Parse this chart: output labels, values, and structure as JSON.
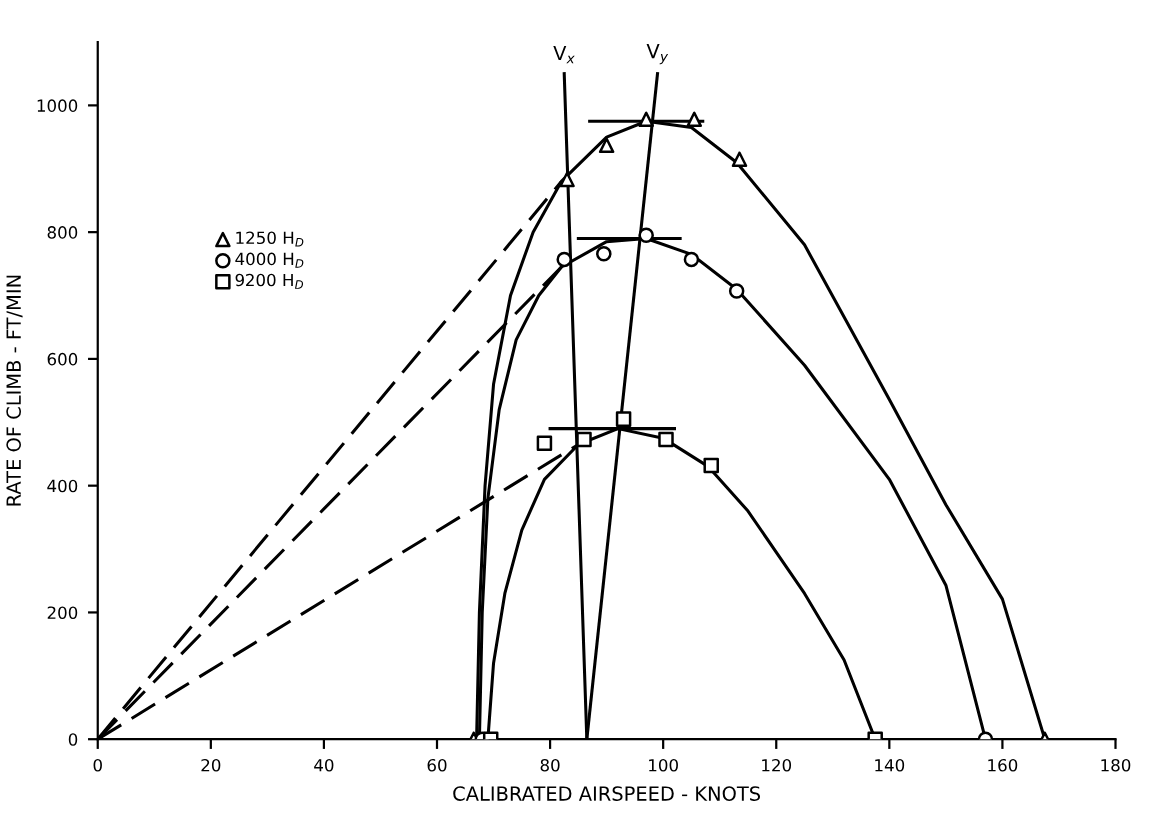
{
  "chart_data": {
    "type": "line",
    "xlabel": "CALIBRATED AIRSPEED - KNOTS",
    "ylabel": "RATE OF CLIMB - FT/MIN",
    "xlim": [
      0,
      180
    ],
    "ylim": [
      0,
      1100
    ],
    "xticks": [
      0,
      20,
      40,
      60,
      80,
      100,
      120,
      140,
      160,
      180
    ],
    "yticks": [
      0,
      200,
      400,
      600,
      800,
      1000
    ],
    "grid": false,
    "legend": "top left",
    "series": [
      {
        "name": "1250 H$_{D}$",
        "type": "scatter",
        "marker": "triangle",
        "color": "#000000",
        "x": [
          66.5,
          83,
          90,
          97,
          105.5,
          113.5,
          167.5
        ],
        "values": [
          0,
          883,
          937,
          978,
          978,
          915,
          0
        ]
      },
      {
        "name": "4000 H$_{D}$",
        "type": "scatter",
        "marker": "circle",
        "color": "#000000",
        "x": [
          68,
          82.5,
          89.5,
          97,
          105,
          113,
          157
        ],
        "values": [
          0,
          757,
          766,
          795,
          757,
          707,
          0
        ]
      },
      {
        "name": "9200 H$_{D}$",
        "type": "scatter",
        "marker": "square",
        "color": "#000000",
        "x": [
          69.5,
          79,
          86,
          93,
          100.5,
          108.5,
          137.5
        ],
        "values": [
          0,
          467,
          473,
          505,
          473,
          432,
          0
        ]
      },
      {
        "line_style": "solid",
        "color": "#000000",
        "x": [
          67,
          67.5,
          68.5,
          70,
          73,
          77,
          82,
          90,
          97,
          105,
          113,
          125,
          140,
          150,
          160,
          167.5
        ],
        "values": [
          0,
          200,
          400,
          560,
          700,
          800,
          880,
          950,
          975,
          965,
          910,
          780,
          536,
          370,
          221,
          0
        ]
      },
      {
        "line_style": "solid",
        "color": "#000000",
        "x": [
          67.5,
          68,
          69,
          71,
          74,
          78,
          82,
          90,
          97,
          105,
          113,
          125,
          140,
          150,
          157
        ],
        "values": [
          0,
          200,
          380,
          520,
          630,
          700,
          745,
          785,
          790,
          765,
          710,
          590,
          410,
          243,
          0
        ]
      },
      {
        "line_style": "solid",
        "color": "#000000",
        "x": [
          69,
          70,
          72,
          75,
          79,
          85,
          92,
          100,
          108,
          115,
          125,
          132,
          137.5
        ],
        "values": [
          0,
          120,
          230,
          330,
          410,
          465,
          490,
          475,
          430,
          360,
          230,
          125,
          0
        ]
      },
      {
        "line_style": "dashed",
        "color": "#000000",
        "x": [
          0,
          82
        ],
        "values": [
          0,
          880
        ]
      },
      {
        "line_style": "dashed",
        "color": "#000000",
        "x": [
          0,
          82
        ],
        "values": [
          0,
          745
        ]
      },
      {
        "line_style": "dashed",
        "color": "#000000",
        "x": [
          0,
          85
        ],
        "values": [
          0,
          465
        ]
      },
      {
        "line_style": "solid",
        "color": "#000000",
        "x": [
          87,
          107
        ],
        "values": [
          975,
          975
        ]
      },
      {
        "line_style": "solid",
        "color": "#000000",
        "x": [
          85,
          103
        ],
        "values": [
          790,
          790
        ]
      },
      {
        "line_style": "solid",
        "color": "#000000",
        "x": [
          80,
          102
        ],
        "values": [
          490,
          490
        ]
      },
      {
        "name": "V$_{x}$",
        "line_style": "solid",
        "color": "#000000",
        "x": [
          86.5,
          82.5
        ],
        "values": [
          0,
          1050
        ]
      },
      {
        "name": "V$_{y}$",
        "line_style": "solid",
        "color": "#000000",
        "x": [
          86.5,
          99
        ],
        "values": [
          0,
          1050
        ]
      }
    ]
  }
}
